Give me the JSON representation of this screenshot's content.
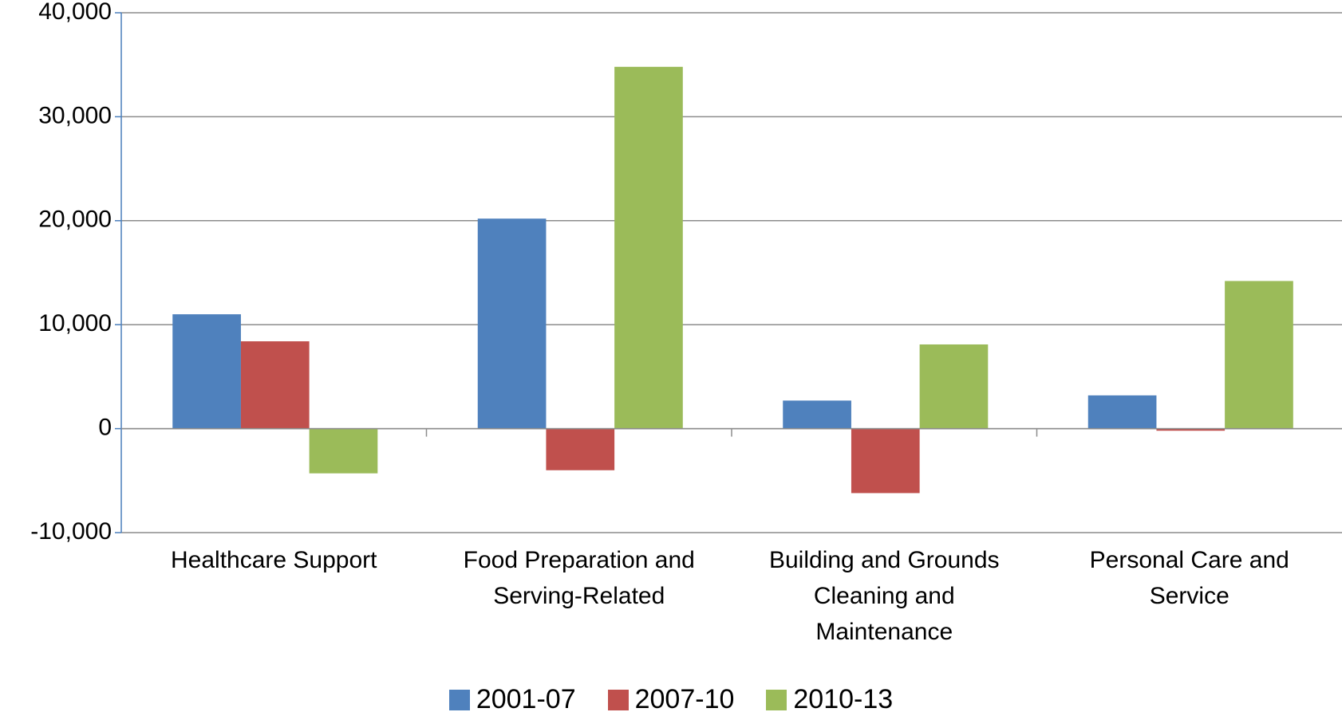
{
  "chart_data": {
    "type": "bar",
    "categories": [
      "Healthcare Support",
      "Food Preparation and Serving-Related",
      "Building and Grounds Cleaning and Maintenance",
      "Personal Care and Service"
    ],
    "series": [
      {
        "name": "2001-07",
        "color": "#4f81bd",
        "values": [
          11000,
          20200,
          2700,
          3200
        ]
      },
      {
        "name": "2007-10",
        "color": "#c0504d",
        "values": [
          8400,
          -4000,
          -6200,
          -200
        ]
      },
      {
        "name": "2010-13",
        "color": "#9bbb59",
        "values": [
          -4300,
          34800,
          8100,
          14200
        ]
      }
    ],
    "ylim": [
      -10000,
      40000
    ],
    "yticks": [
      {
        "value": -10000,
        "label": "-10,000"
      },
      0,
      {
        "value": 10000,
        "label": "10,000"
      },
      {
        "value": 20000,
        "label": "20,000"
      },
      {
        "value": 30000,
        "label": "30,000"
      },
      {
        "value": 40000,
        "label": "40,000"
      }
    ],
    "grid": true,
    "legend": "bottom"
  }
}
